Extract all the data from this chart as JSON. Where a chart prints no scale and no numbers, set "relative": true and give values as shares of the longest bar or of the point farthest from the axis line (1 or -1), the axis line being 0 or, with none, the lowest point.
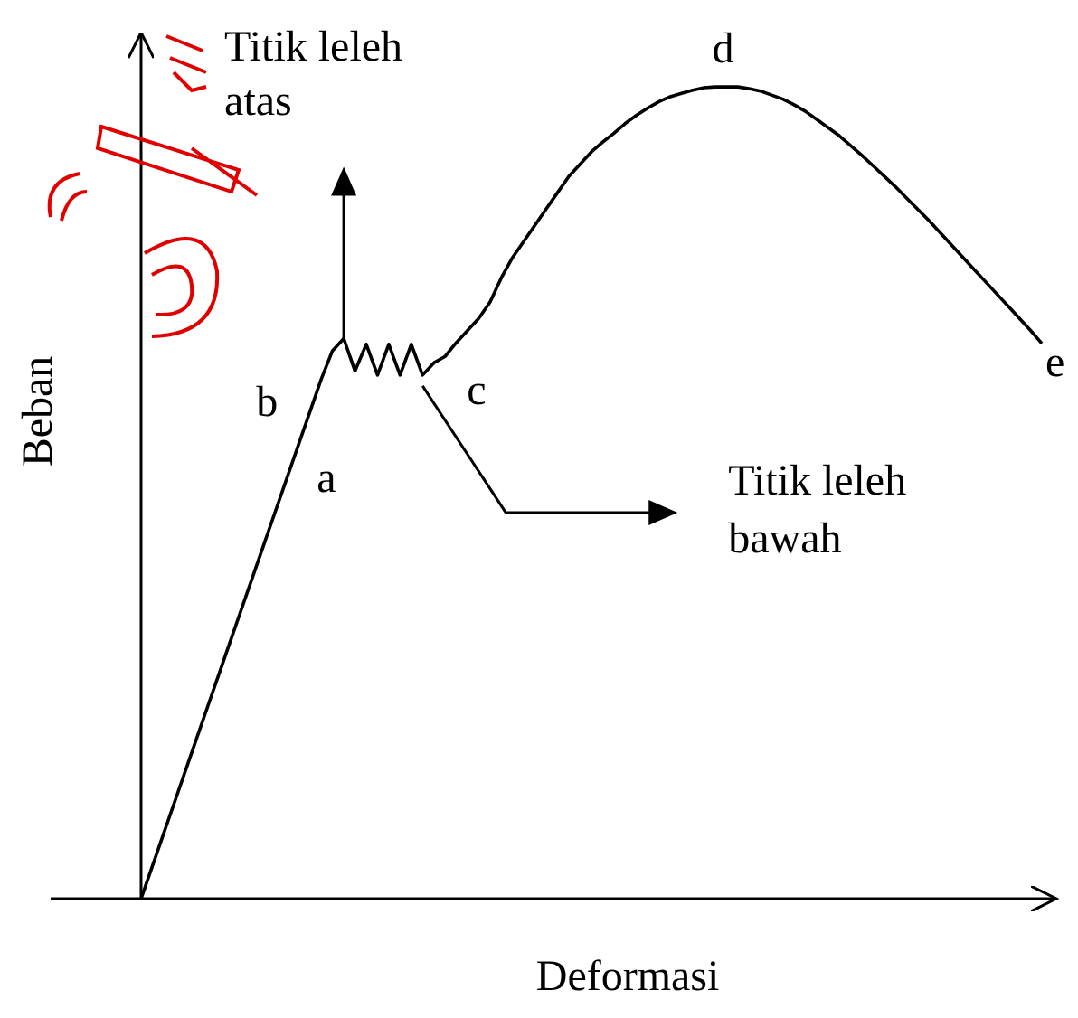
{
  "chart_data": {
    "type": "line",
    "relative": true,
    "xlabel": "Deformasi",
    "ylabel": "Beban",
    "color": "#000000",
    "marker": "none",
    "categories": [
      null,
      null,
      null,
      null,
      null,
      null,
      null,
      null,
      null,
      null,
      null,
      null,
      null,
      null,
      null,
      null,
      null,
      null,
      null,
      null,
      null,
      null,
      null,
      null,
      null,
      null,
      null,
      null,
      null,
      null,
      null,
      null,
      null,
      null,
      null,
      null,
      null,
      null,
      null,
      null,
      null,
      null,
      null,
      null,
      null,
      null,
      null,
      null,
      null,
      null,
      null,
      null,
      null,
      null,
      null,
      null,
      null,
      null,
      null,
      null,
      null,
      null,
      null,
      null,
      null,
      null,
      null,
      null,
      null,
      null,
      null,
      null,
      null,
      null,
      null,
      null,
      null,
      null,
      null,
      null,
      null
    ],
    "values": [
      0,
      0.04,
      0.08,
      0.12,
      0.16,
      0.2,
      0.24,
      0.28,
      0.32,
      0.36,
      0.4,
      0.44,
      0.48,
      0.52,
      0.56,
      0.6,
      0.64,
      0.675,
      0.69,
      0.65,
      0.683,
      0.645,
      0.683,
      0.645,
      0.683,
      0.645,
      0.66,
      0.668,
      0.685,
      0.7,
      0.715,
      0.735,
      0.765,
      0.79,
      0.81,
      0.83,
      0.85,
      0.87,
      0.89,
      0.905,
      0.92,
      0.932,
      0.943,
      0.955,
      0.965,
      0.974,
      0.982,
      0.988,
      0.992,
      0.996,
      0.999,
      1,
      1,
      1,
      0.998,
      0.995,
      0.99,
      0.985,
      0.978,
      0.97,
      0.96,
      0.95,
      0.94,
      0.928,
      0.916,
      0.903,
      0.89,
      0.877,
      0.863,
      0.849,
      0.835,
      0.82,
      0.805,
      0.79,
      0.775,
      0.76,
      0.745,
      0.73,
      0.715,
      0.7,
      0.684
    ],
    "annotations": [
      "a",
      "b",
      "c",
      "d",
      "e",
      "Titik leleh atas",
      "Titik leleh bawah"
    ]
  }
}
